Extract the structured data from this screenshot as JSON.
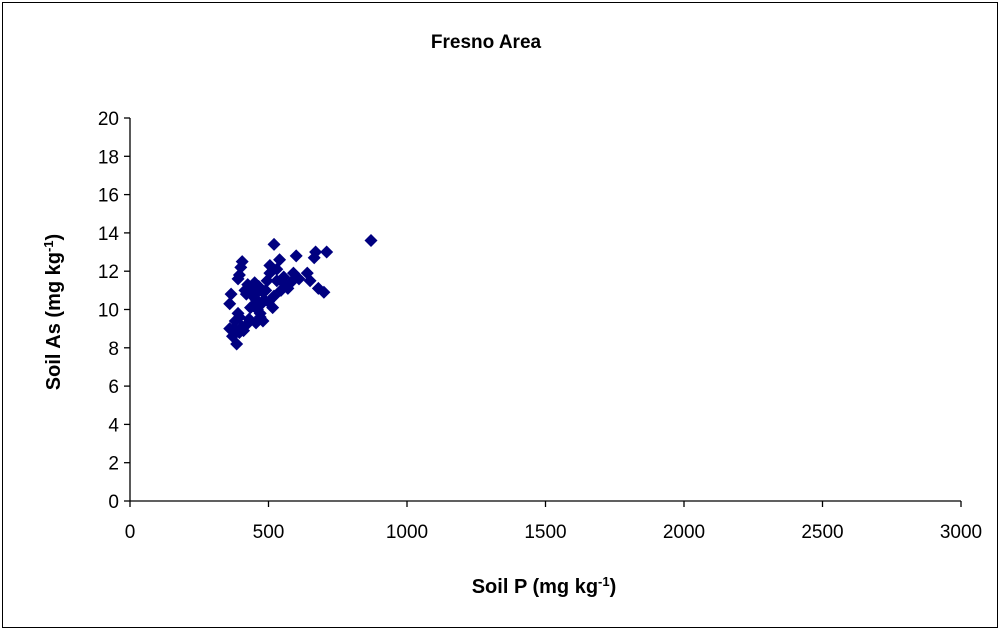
{
  "chart_data": {
    "type": "scatter",
    "title": "Fresno Area",
    "xlabel": {
      "main": "Soil P (mg kg",
      "sup": "-1",
      "end": ")"
    },
    "ylabel": {
      "main": "Soil As (mg kg",
      "sup": "-1",
      "end": ")"
    },
    "xlim": [
      0,
      3000
    ],
    "ylim": [
      0,
      20
    ],
    "x_ticks": [
      "0",
      "500",
      "1000",
      "1500",
      "2000",
      "2500",
      "3000"
    ],
    "y_ticks": [
      "0",
      "2",
      "4",
      "6",
      "8",
      "10",
      "12",
      "14",
      "16",
      "18",
      "20"
    ],
    "grid": false,
    "legend": "none",
    "marker": "diamond",
    "marker_color": "#000080",
    "series": [
      {
        "points": [
          [
            870,
            13.6
          ],
          [
            710,
            13.0
          ],
          [
            670,
            13.0
          ],
          [
            665,
            12.7
          ],
          [
            600,
            12.8
          ],
          [
            520,
            13.4
          ],
          [
            540,
            12.6
          ],
          [
            505,
            12.3
          ],
          [
            700,
            10.9
          ],
          [
            680,
            11.1
          ],
          [
            650,
            11.5
          ],
          [
            640,
            11.9
          ],
          [
            610,
            11.6
          ],
          [
            590,
            11.9
          ],
          [
            580,
            11.4
          ],
          [
            570,
            11.1
          ],
          [
            560,
            11.3
          ],
          [
            555,
            11.7
          ],
          [
            545,
            11.0
          ],
          [
            530,
            11.5
          ],
          [
            520,
            10.7
          ],
          [
            515,
            10.1
          ],
          [
            505,
            11.9
          ],
          [
            495,
            11.5
          ],
          [
            490,
            11.0
          ],
          [
            485,
            10.5
          ],
          [
            480,
            10.9
          ],
          [
            475,
            10.3
          ],
          [
            470,
            9.6
          ],
          [
            465,
            11.2
          ],
          [
            460,
            10.0
          ],
          [
            455,
            9.3
          ],
          [
            450,
            10.6
          ],
          [
            445,
            10.2
          ],
          [
            440,
            11.1
          ],
          [
            435,
            10.1
          ],
          [
            430,
            9.5
          ],
          [
            425,
            11.3
          ],
          [
            420,
            10.8
          ],
          [
            415,
            11.0
          ],
          [
            405,
            12.5
          ],
          [
            400,
            12.2
          ],
          [
            395,
            11.8
          ],
          [
            390,
            11.6
          ],
          [
            390,
            9.8
          ],
          [
            385,
            8.2
          ],
          [
            380,
            9.4
          ],
          [
            375,
            9.0
          ],
          [
            370,
            8.6
          ],
          [
            365,
            10.8
          ],
          [
            360,
            10.3
          ],
          [
            360,
            9.0
          ],
          [
            395,
            8.8
          ],
          [
            405,
            9.1
          ],
          [
            410,
            8.9
          ],
          [
            455,
            10.5
          ],
          [
            470,
            9.8
          ],
          [
            480,
            9.4
          ],
          [
            500,
            10.4
          ],
          [
            530,
            12.1
          ],
          [
            460,
            10.9
          ],
          [
            450,
            11.4
          ],
          [
            420,
            9.2
          ],
          [
            395,
            9.6
          ]
        ]
      }
    ]
  }
}
